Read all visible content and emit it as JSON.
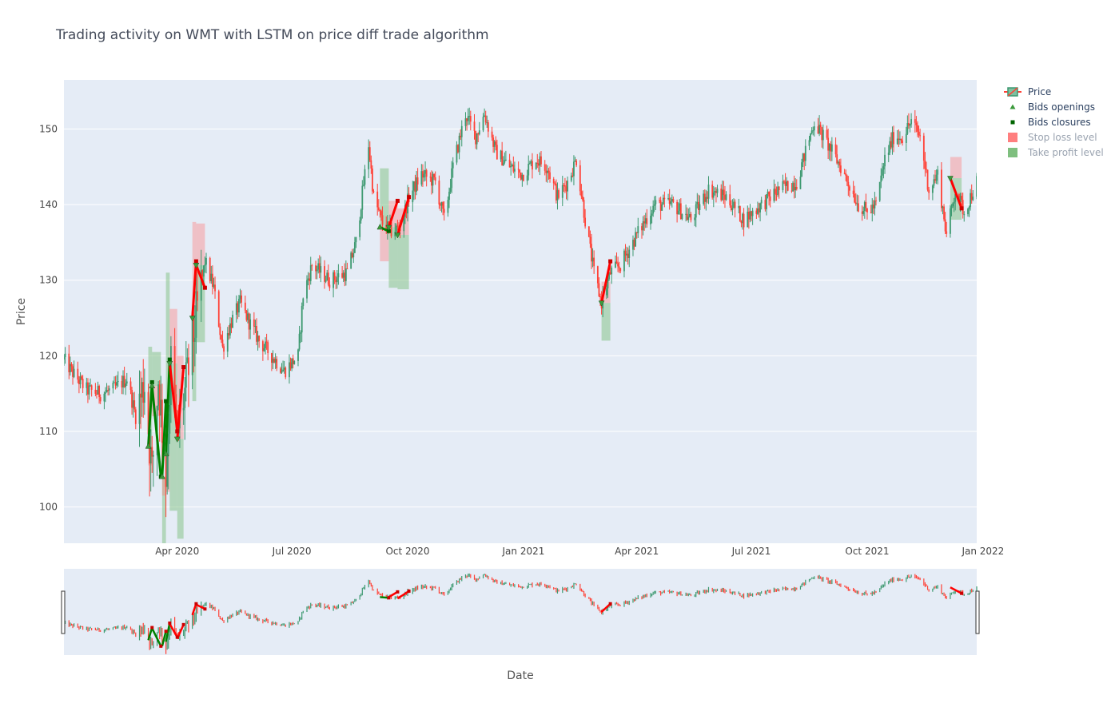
{
  "chart_data": {
    "type": "candlestick",
    "title": "Trading activity on WMT with LSTM on price diff trade algorithm",
    "xlabel": "Date",
    "ylabel": "Price",
    "x_range": [
      "2020-01-02",
      "2021-12-27"
    ],
    "y_range": [
      95.2,
      156.5
    ],
    "y_ticks": [
      100,
      110,
      120,
      130,
      140,
      150
    ],
    "x_ticks": [
      {
        "date": "2020-04-01",
        "label": "Apr 2020"
      },
      {
        "date": "2020-07-01",
        "label": "Jul 2020"
      },
      {
        "date": "2020-10-01",
        "label": "Oct 2020"
      },
      {
        "date": "2021-01-01",
        "label": "Jan 2021"
      },
      {
        "date": "2021-04-01",
        "label": "Apr 2021"
      },
      {
        "date": "2021-07-01",
        "label": "Jul 2021"
      },
      {
        "date": "2021-10-01",
        "label": "Oct 2021"
      },
      {
        "date": "2022-01-01",
        "label": "Jan 2022"
      }
    ],
    "grid": true,
    "legend_position": "right",
    "colors": {
      "plot_bg": "#e5ecf6",
      "increasing": "#3d9970",
      "decreasing": "#ff4136",
      "long_trade": "#008000",
      "short_trade": "#ff0000",
      "stop_loss": "#ff7f7f",
      "take_profit": "#7fbf7f"
    },
    "price_path": [
      [
        "2020-01-02",
        119.5
      ],
      [
        "2020-01-10",
        117.5
      ],
      [
        "2020-01-20",
        115.5
      ],
      [
        "2020-01-31",
        115.0
      ],
      [
        "2020-02-10",
        115.5
      ],
      [
        "2020-02-21",
        117.0
      ],
      [
        "2020-02-28",
        112.0
      ],
      [
        "2020-03-06",
        116.5
      ],
      [
        "2020-03-12",
        104.5
      ],
      [
        "2020-03-17",
        117.0
      ],
      [
        "2020-03-23",
        104.0
      ],
      [
        "2020-03-27",
        119.0
      ],
      [
        "2020-04-01",
        109.5
      ],
      [
        "2020-04-09",
        117.0
      ],
      [
        "2020-04-16",
        125.0
      ],
      [
        "2020-04-23",
        132.5
      ],
      [
        "2020-04-30",
        129.0
      ],
      [
        "2020-05-07",
        121.0
      ],
      [
        "2020-05-14",
        124.5
      ],
      [
        "2020-05-21",
        127.0
      ],
      [
        "2020-05-28",
        124.5
      ],
      [
        "2020-06-05",
        122.0
      ],
      [
        "2020-06-15",
        120.0
      ],
      [
        "2020-06-25",
        118.0
      ],
      [
        "2020-07-06",
        120.0
      ],
      [
        "2020-07-10",
        128.0
      ],
      [
        "2020-07-17",
        132.0
      ],
      [
        "2020-07-31",
        130.0
      ],
      [
        "2020-08-14",
        131.0
      ],
      [
        "2020-08-21",
        135.0
      ],
      [
        "2020-08-31",
        148.0
      ],
      [
        "2020-09-04",
        141.0
      ],
      [
        "2020-09-11",
        137.5
      ],
      [
        "2020-09-18",
        136.5
      ],
      [
        "2020-09-25",
        137.0
      ],
      [
        "2020-10-02",
        141.0
      ],
      [
        "2020-10-12",
        144.0
      ],
      [
        "2020-10-23",
        143.0
      ],
      [
        "2020-10-30",
        138.0
      ],
      [
        "2020-11-06",
        145.0
      ],
      [
        "2020-11-16",
        152.0
      ],
      [
        "2020-11-24",
        149.0
      ],
      [
        "2020-12-01",
        152.0
      ],
      [
        "2020-12-10",
        147.0
      ],
      [
        "2020-12-21",
        145.0
      ],
      [
        "2020-12-31",
        144.0
      ],
      [
        "2021-01-11",
        146.0
      ],
      [
        "2021-01-20",
        145.0
      ],
      [
        "2021-01-28",
        141.0
      ],
      [
        "2021-02-05",
        143.0
      ],
      [
        "2021-02-12",
        146.0
      ],
      [
        "2021-02-19",
        138.0
      ],
      [
        "2021-02-26",
        131.0
      ],
      [
        "2021-03-04",
        127.0
      ],
      [
        "2021-03-11",
        131.0
      ],
      [
        "2021-03-19",
        132.0
      ],
      [
        "2021-04-01",
        136.0
      ],
      [
        "2021-04-15",
        140.0
      ],
      [
        "2021-04-30",
        140.0
      ],
      [
        "2021-05-14",
        138.0
      ],
      [
        "2021-05-28",
        142.0
      ],
      [
        "2021-06-11",
        141.0
      ],
      [
        "2021-06-25",
        138.0
      ],
      [
        "2021-07-09",
        140.0
      ],
      [
        "2021-07-23",
        142.0
      ],
      [
        "2021-08-06",
        143.0
      ],
      [
        "2021-08-13",
        147.0
      ],
      [
        "2021-08-20",
        151.0
      ],
      [
        "2021-08-27",
        149.0
      ],
      [
        "2021-09-10",
        145.0
      ],
      [
        "2021-09-24",
        140.0
      ],
      [
        "2021-10-01",
        139.0
      ],
      [
        "2021-10-08",
        140.0
      ],
      [
        "2021-10-15",
        146.0
      ],
      [
        "2021-10-22",
        149.0
      ],
      [
        "2021-10-29",
        149.0
      ],
      [
        "2021-11-05",
        151.0
      ],
      [
        "2021-11-12",
        149.0
      ],
      [
        "2021-11-19",
        142.0
      ],
      [
        "2021-11-26",
        144.0
      ],
      [
        "2021-12-03",
        136.0
      ],
      [
        "2021-12-10",
        142.0
      ],
      [
        "2021-12-17",
        139.0
      ],
      [
        "2021-12-27",
        143.0
      ]
    ],
    "trades": [
      {
        "side": "long",
        "open_date": "2020-03-09",
        "open_price": 108.0,
        "close_date": "2020-03-12",
        "close_price": 116.5,
        "stop_loss": 105.5,
        "take_profit": 121.2
      },
      {
        "side": "long",
        "open_date": "2020-03-12",
        "open_price": 116.0,
        "close_date": "2020-03-19",
        "close_price": 104.0,
        "stop_loss": 112.0,
        "take_profit": 120.5
      },
      {
        "side": "long",
        "open_date": "2020-03-20",
        "open_price": 104.0,
        "close_date": "2020-03-23",
        "close_price": 114.0,
        "stop_loss": 101.5,
        "take_profit": 95.2
      },
      {
        "side": "long",
        "open_date": "2020-03-23",
        "open_price": 107.0,
        "close_date": "2020-03-26",
        "close_price": 119.5,
        "stop_loss": 102.0,
        "take_profit": 131.0
      },
      {
        "side": "short",
        "open_date": "2020-03-26",
        "open_price": 119.0,
        "close_date": "2020-04-01",
        "close_price": 110.0,
        "stop_loss": 126.2,
        "take_profit": 99.5
      },
      {
        "side": "short",
        "open_date": "2020-04-01",
        "open_price": 109.0,
        "close_date": "2020-04-06",
        "close_price": 118.5,
        "stop_loss": 120.0,
        "take_profit": 95.8
      },
      {
        "side": "short",
        "open_date": "2020-04-13",
        "open_price": 125.0,
        "close_date": "2020-04-16",
        "close_price": 132.5,
        "stop_loss": 137.7,
        "take_profit": 114.0
      },
      {
        "side": "short",
        "open_date": "2020-04-16",
        "open_price": 132.0,
        "close_date": "2020-04-23",
        "close_price": 129.0,
        "stop_loss": 137.5,
        "take_profit": 121.8
      },
      {
        "side": "long",
        "open_date": "2020-09-09",
        "open_price": 137.0,
        "close_date": "2020-09-16",
        "close_price": 136.5,
        "stop_loss": 132.5,
        "take_profit": 144.8
      },
      {
        "side": "short",
        "open_date": "2020-09-16",
        "open_price": 137.0,
        "close_date": "2020-09-23",
        "close_price": 140.5,
        "stop_loss": 140.5,
        "take_profit": 129.0
      },
      {
        "side": "short",
        "open_date": "2020-09-23",
        "open_price": 136.0,
        "close_date": "2020-10-02",
        "close_price": 141.0,
        "stop_loss": 139.5,
        "take_profit": 128.8
      },
      {
        "side": "short",
        "open_date": "2021-03-04",
        "open_price": 127.0,
        "close_date": "2021-03-11",
        "close_price": 132.5,
        "stop_loss": 129.8,
        "take_profit": 122.0
      },
      {
        "side": "short",
        "open_date": "2021-12-06",
        "open_price": 143.5,
        "close_date": "2021-12-15",
        "close_price": 139.5,
        "stop_loss": 146.3,
        "take_profit": 138.0
      }
    ],
    "legend": [
      {
        "key": "price",
        "label": "Price",
        "active": true
      },
      {
        "key": "open",
        "label": "Bids openings",
        "active": true
      },
      {
        "key": "close",
        "label": "Bids closures",
        "active": true
      },
      {
        "key": "stop_loss",
        "label": "Stop loss level",
        "active": false
      },
      {
        "key": "take_profit",
        "label": "Take profit level",
        "active": false
      }
    ]
  }
}
